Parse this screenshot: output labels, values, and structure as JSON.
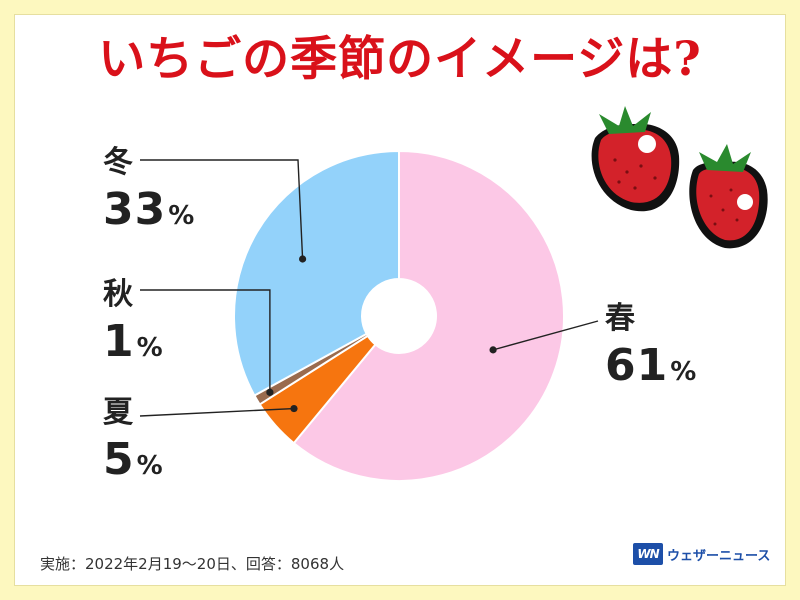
{
  "title": "いちごの季節のイメージは?",
  "chart_data": {
    "type": "pie",
    "donut": true,
    "series": [
      {
        "name": "春",
        "value": 61,
        "color": "#fcc8e6"
      },
      {
        "name": "夏",
        "value": 5,
        "color": "#f6750f"
      },
      {
        "name": "秋",
        "value": 1,
        "color": "#9a6b4e"
      },
      {
        "name": "冬",
        "value": 33,
        "color": "#93d2fa"
      }
    ],
    "labels": [
      {
        "name": "春",
        "pct": "61",
        "unit": "%"
      },
      {
        "name": "夏",
        "pct": "5",
        "unit": "%"
      },
      {
        "name": "秋",
        "pct": "1",
        "unit": "%"
      },
      {
        "name": "冬",
        "pct": "33",
        "unit": "%"
      }
    ]
  },
  "footer": {
    "note": "実施：2022年2月19〜20日、回答：8068人",
    "brand_mark": "WN",
    "brand_name": "ウェザーニュース"
  },
  "colors": {
    "background": "#fdf8bf",
    "title": "#d9111a",
    "brand": "#1d4fa8"
  },
  "decoration": {
    "icon": "strawberry-icon"
  }
}
